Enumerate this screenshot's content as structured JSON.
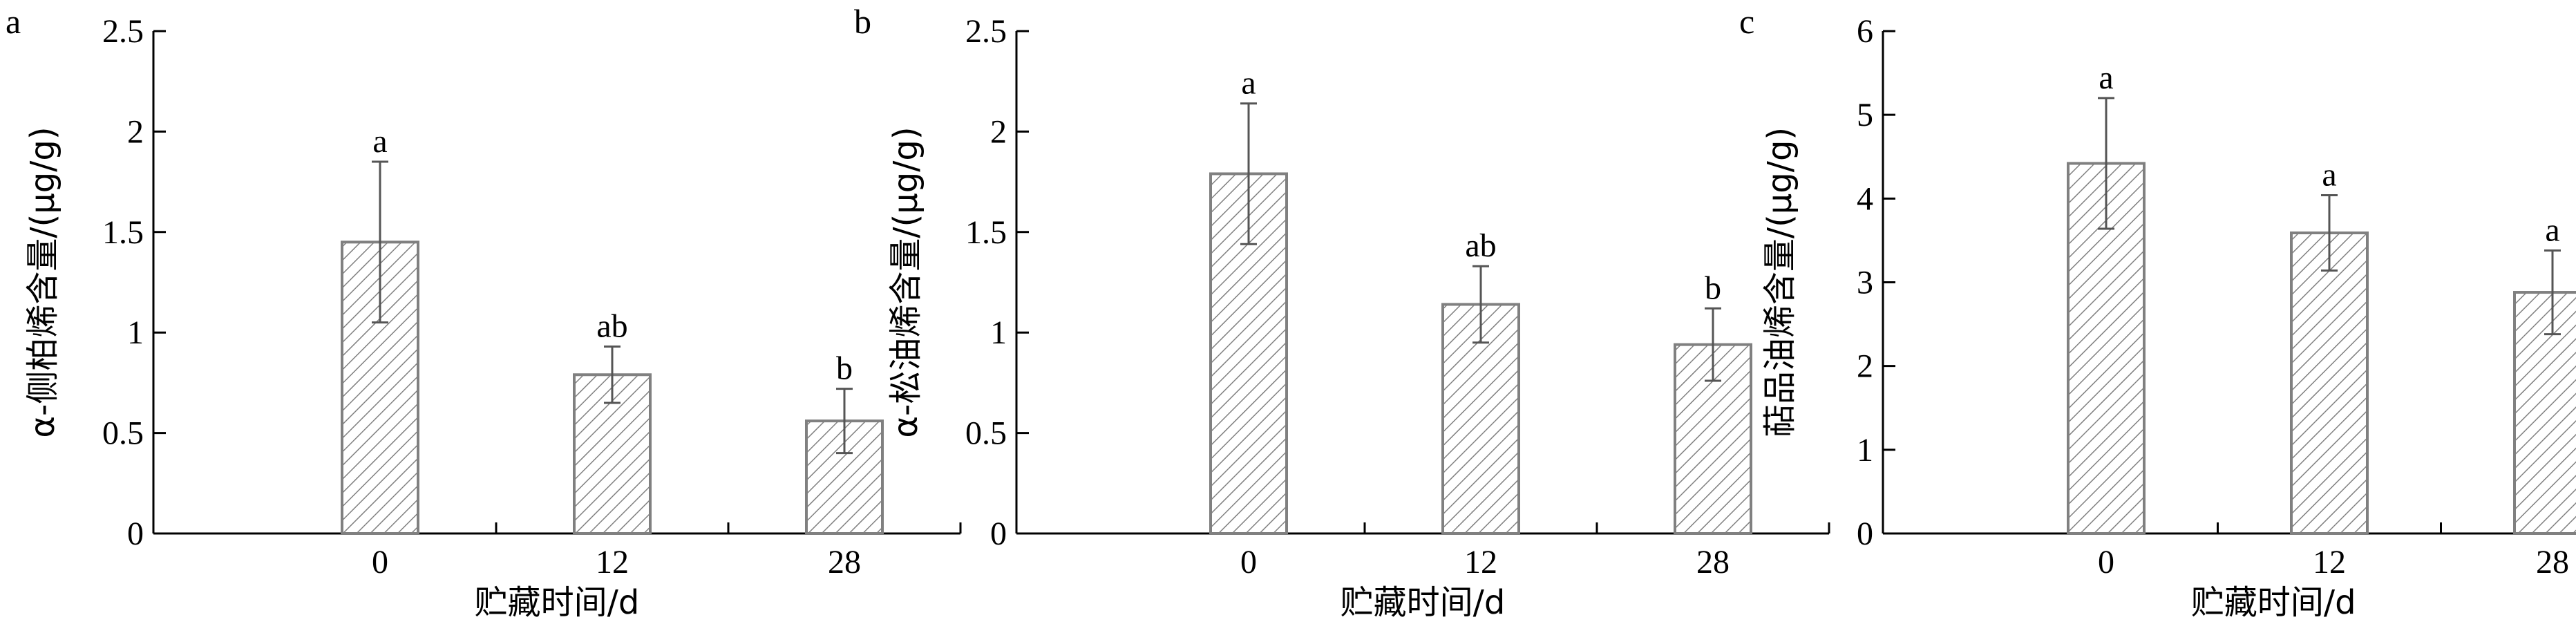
{
  "chart_data": [
    {
      "type": "bar",
      "panel": "a",
      "categories": [
        "0",
        "12",
        "28"
      ],
      "values": [
        1.45,
        0.79,
        0.56
      ],
      "errors": [
        0.4,
        0.14,
        0.16
      ],
      "significance": [
        "a",
        "ab",
        "b"
      ],
      "xlabel": "贮藏时间/d",
      "ylabel": "α-侧柏烯含量/(μg/g)",
      "ylim": [
        0,
        2.5
      ],
      "yticks": [
        "0",
        "0.5",
        "1",
        "1.5",
        "2",
        "2.5"
      ]
    },
    {
      "type": "bar",
      "panel": "b",
      "categories": [
        "0",
        "12",
        "28"
      ],
      "values": [
        1.79,
        1.14,
        0.94
      ],
      "errors": [
        0.35,
        0.19,
        0.18
      ],
      "significance": [
        "a",
        "ab",
        "b"
      ],
      "xlabel": "贮藏时间/d",
      "ylabel": "α-松油烯含量/(μg/g)",
      "ylim": [
        0,
        2.5
      ],
      "yticks": [
        "0",
        "0.5",
        "1",
        "1.5",
        "2",
        "2.5"
      ]
    },
    {
      "type": "bar",
      "panel": "c",
      "categories": [
        "0",
        "12",
        "28"
      ],
      "values": [
        4.42,
        3.59,
        2.88
      ],
      "errors": [
        0.78,
        0.45,
        0.5
      ],
      "significance": [
        "a",
        "a",
        "a"
      ],
      "xlabel": "贮藏时间/d",
      "ylabel": "萜品油烯含量/(μg/g)",
      "ylim": [
        0,
        6
      ],
      "yticks": [
        "0",
        "1",
        "2",
        "3",
        "4",
        "5",
        "6"
      ]
    }
  ],
  "colors": {
    "bar_stroke": "#808080",
    "hatch": "#808080",
    "axis": "#000000",
    "error_bar": "#555555"
  },
  "bar_fill": "diagonal-hatch"
}
